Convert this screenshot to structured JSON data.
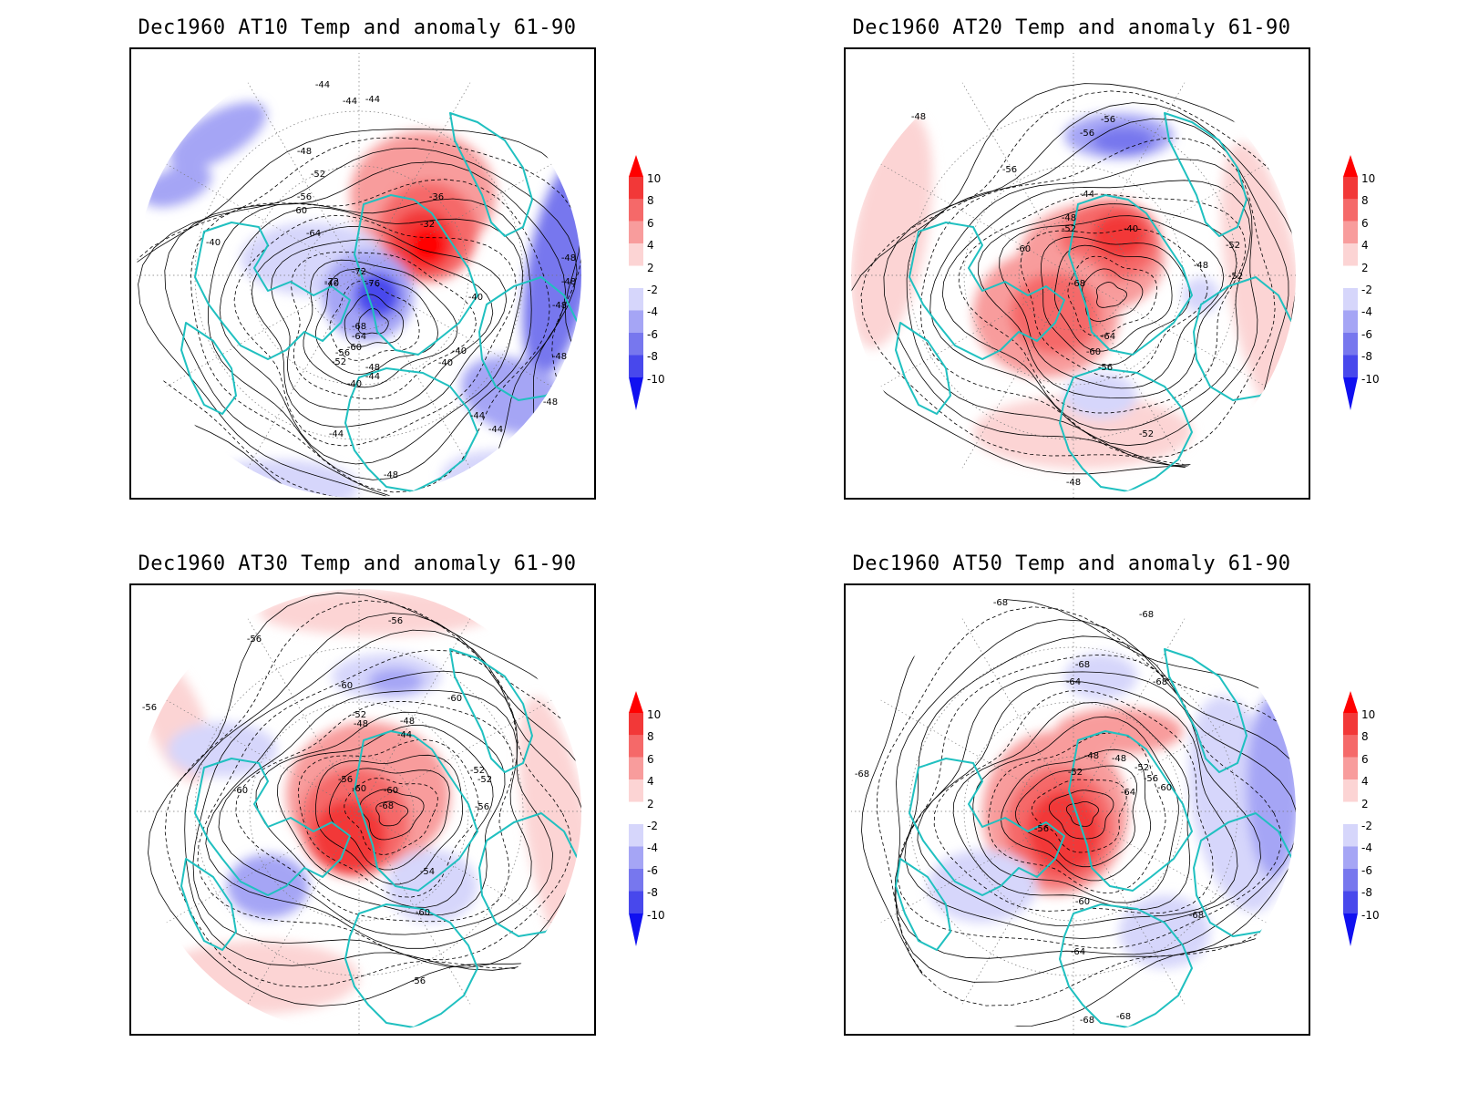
{
  "panels": [
    {
      "title": "Dec1960 AT10 Temp and anomaly 61-90",
      "labels": [
        "-44",
        "-44",
        "-44",
        "-48",
        "-52",
        "-56",
        "-60",
        "-40",
        "-40",
        "-64",
        "-72",
        "-72",
        "-76",
        "-36",
        "-32",
        "-68",
        "-64",
        "-60",
        "-56",
        "-52",
        "-48",
        "-44",
        "-40",
        "-40",
        "-40",
        "-44",
        "-44",
        "-48",
        "-48",
        "-48",
        "-48",
        "-48",
        "-48",
        "-44",
        "-40"
      ]
    },
    {
      "title": "Dec1960 AT20 Temp and anomaly 61-90",
      "labels": [
        "-48",
        "-56",
        "-56",
        "-56",
        "-44",
        "-48",
        "-52",
        "-60",
        "-40",
        "-52",
        "-48",
        "-52",
        "-68",
        "-64",
        "-60",
        "-56",
        "-52",
        "-48"
      ]
    },
    {
      "title": "Dec1960 AT30 Temp and anomaly 61-90",
      "labels": [
        "-56",
        "-56",
        "-56",
        "-60",
        "-60",
        "-52",
        "-48",
        "-48",
        "-44",
        "-52",
        "-52",
        "-56",
        "-60",
        "-56",
        "-60",
        "-68",
        "-60",
        "-54",
        "-60",
        "-56"
      ]
    },
    {
      "title": "Dec1960 AT50 Temp and anomaly 61-90",
      "labels": [
        "-68",
        "-68",
        "-68",
        "-64",
        "-68",
        "-68",
        "-48",
        "-48",
        "-52",
        "-52",
        "-56",
        "-60",
        "-64",
        "-56",
        "-60",
        "-68",
        "-64",
        "-68",
        "-68"
      ]
    }
  ],
  "colorbar": {
    "levels": [
      "10",
      "8",
      "6",
      "4",
      "2",
      "-2",
      "-4",
      "-6",
      "-8",
      "-10"
    ],
    "colors": [
      "#ff0000",
      "#f23838",
      "#f56969",
      "#f89c9c",
      "#fcd4d4",
      "#ffffff",
      "#d6d6fb",
      "#a5a5f5",
      "#7777ee",
      "#4848ec",
      "#1010f0"
    ]
  },
  "colors": {
    "coast": "#20c0c0",
    "contour": "#000000"
  }
}
